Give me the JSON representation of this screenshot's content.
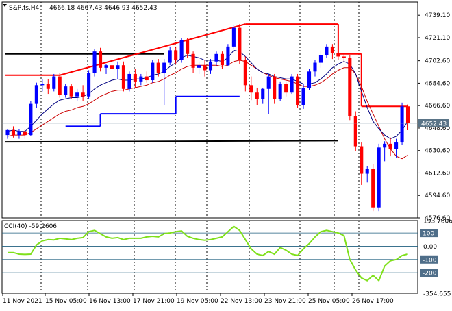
{
  "header": {
    "symbol": "S&P,fs,H4",
    "ohlc": "4666.18 4667.43 4646.93 4652.43"
  },
  "price_axis": {
    "ticks": [
      "4739.10",
      "4721.10",
      "4702.60",
      "4684.60",
      "4666.60",
      "4648.60",
      "4630.60",
      "4612.60",
      "4594.60",
      "4576.60"
    ],
    "current_price": "4652.43"
  },
  "indicator": {
    "title": "CCI(40) -59.2606",
    "ticks": [
      "193.7606",
      "100",
      "0.00",
      "-100",
      "-200",
      "-354.655"
    ],
    "highlighted_ticks": [
      "100",
      "-100",
      "-200"
    ]
  },
  "time_axis": {
    "labels": [
      "11 Nov 2021",
      "15 Nov 05:00",
      "16 Nov 13:00",
      "17 Nov 21:00",
      "19 Nov 05:00",
      "22 Nov 13:00",
      "23 Nov 21:00",
      "25 Nov 05:00",
      "26 Nov 17:00"
    ]
  },
  "colors": {
    "bull": "#0000ff",
    "bear": "#ff0000",
    "ma_fast": "#000080",
    "ma_slow": "#cc0000",
    "cci": "#7fe01a",
    "level_line": "#1f5f7f",
    "grid": "#000000",
    "resistance": "#ff0000",
    "support": "#0000ff",
    "range": "#000000"
  },
  "chart_data": [
    {
      "type": "candlestick",
      "title": "S&P,fs,H4",
      "ylim": [
        4576.6,
        4748.0
      ],
      "grid": true,
      "candles": [
        {
          "o": 4643,
          "h": 4648,
          "l": 4640,
          "c": 4647
        },
        {
          "o": 4647,
          "h": 4650,
          "l": 4641,
          "c": 4643
        },
        {
          "o": 4643,
          "h": 4648,
          "l": 4640,
          "c": 4646
        },
        {
          "o": 4646,
          "h": 4648,
          "l": 4640,
          "c": 4643
        },
        {
          "o": 4643,
          "h": 4670,
          "l": 4642,
          "c": 4668
        },
        {
          "o": 4668,
          "h": 4685,
          "l": 4665,
          "c": 4683
        },
        {
          "o": 4683,
          "h": 4688,
          "l": 4678,
          "c": 4684
        },
        {
          "o": 4684,
          "h": 4688,
          "l": 4676,
          "c": 4680
        },
        {
          "o": 4680,
          "h": 4692,
          "l": 4678,
          "c": 4690
        },
        {
          "o": 4690,
          "h": 4693,
          "l": 4673,
          "c": 4675
        },
        {
          "o": 4675,
          "h": 4684,
          "l": 4673,
          "c": 4682
        },
        {
          "o": 4682,
          "h": 4684,
          "l": 4672,
          "c": 4674
        },
        {
          "o": 4674,
          "h": 4680,
          "l": 4670,
          "c": 4677
        },
        {
          "o": 4677,
          "h": 4683,
          "l": 4670,
          "c": 4674
        },
        {
          "o": 4674,
          "h": 4695,
          "l": 4672,
          "c": 4693
        },
        {
          "o": 4693,
          "h": 4712,
          "l": 4690,
          "c": 4710
        },
        {
          "o": 4710,
          "h": 4713,
          "l": 4694,
          "c": 4697
        },
        {
          "o": 4697,
          "h": 4700,
          "l": 4692,
          "c": 4699
        },
        {
          "o": 4699,
          "h": 4704,
          "l": 4693,
          "c": 4696
        },
        {
          "o": 4696,
          "h": 4702,
          "l": 4688,
          "c": 4699
        },
        {
          "o": 4699,
          "h": 4702,
          "l": 4678,
          "c": 4680
        },
        {
          "o": 4680,
          "h": 4694,
          "l": 4678,
          "c": 4692
        },
        {
          "o": 4692,
          "h": 4696,
          "l": 4681,
          "c": 4686
        },
        {
          "o": 4686,
          "h": 4692,
          "l": 4683,
          "c": 4690
        },
        {
          "o": 4690,
          "h": 4694,
          "l": 4685,
          "c": 4687
        },
        {
          "o": 4687,
          "h": 4703,
          "l": 4685,
          "c": 4701
        },
        {
          "o": 4701,
          "h": 4704,
          "l": 4690,
          "c": 4693
        },
        {
          "o": 4693,
          "h": 4704,
          "l": 4667,
          "c": 4701
        },
        {
          "o": 4701,
          "h": 4714,
          "l": 4699,
          "c": 4711
        },
        {
          "o": 4711,
          "h": 4714,
          "l": 4700,
          "c": 4703
        },
        {
          "o": 4703,
          "h": 4721,
          "l": 4701,
          "c": 4719
        },
        {
          "o": 4719,
          "h": 4721,
          "l": 4705,
          "c": 4708
        },
        {
          "o": 4708,
          "h": 4710,
          "l": 4693,
          "c": 4697
        },
        {
          "o": 4697,
          "h": 4702,
          "l": 4692,
          "c": 4699
        },
        {
          "o": 4699,
          "h": 4703,
          "l": 4690,
          "c": 4695
        },
        {
          "o": 4695,
          "h": 4704,
          "l": 4692,
          "c": 4702
        },
        {
          "o": 4702,
          "h": 4710,
          "l": 4698,
          "c": 4708
        },
        {
          "o": 4708,
          "h": 4710,
          "l": 4696,
          "c": 4699
        },
        {
          "o": 4699,
          "h": 4716,
          "l": 4698,
          "c": 4714
        },
        {
          "o": 4714,
          "h": 4731,
          "l": 4712,
          "c": 4729
        },
        {
          "o": 4729,
          "h": 4732,
          "l": 4700,
          "c": 4703
        },
        {
          "o": 4703,
          "h": 4706,
          "l": 4678,
          "c": 4683
        },
        {
          "o": 4683,
          "h": 4690,
          "l": 4671,
          "c": 4677
        },
        {
          "o": 4677,
          "h": 4681,
          "l": 4667,
          "c": 4672
        },
        {
          "o": 4672,
          "h": 4681,
          "l": 4668,
          "c": 4680
        },
        {
          "o": 4680,
          "h": 4692,
          "l": 4660,
          "c": 4690
        },
        {
          "o": 4690,
          "h": 4692,
          "l": 4668,
          "c": 4672
        },
        {
          "o": 4672,
          "h": 4686,
          "l": 4670,
          "c": 4684
        },
        {
          "o": 4684,
          "h": 4686,
          "l": 4674,
          "c": 4677
        },
        {
          "o": 4677,
          "h": 4692,
          "l": 4676,
          "c": 4690
        },
        {
          "o": 4690,
          "h": 4692,
          "l": 4665,
          "c": 4667
        },
        {
          "o": 4667,
          "h": 4684,
          "l": 4664,
          "c": 4681
        },
        {
          "o": 4681,
          "h": 4696,
          "l": 4679,
          "c": 4694
        },
        {
          "o": 4694,
          "h": 4703,
          "l": 4690,
          "c": 4701
        },
        {
          "o": 4701,
          "h": 4710,
          "l": 4697,
          "c": 4707
        },
        {
          "o": 4707,
          "h": 4716,
          "l": 4705,
          "c": 4714
        },
        {
          "o": 4714,
          "h": 4716,
          "l": 4704,
          "c": 4709
        },
        {
          "o": 4709,
          "h": 4712,
          "l": 4703,
          "c": 4706
        },
        {
          "o": 4706,
          "h": 4709,
          "l": 4702,
          "c": 4705
        },
        {
          "o": 4705,
          "h": 4707,
          "l": 4655,
          "c": 4658
        },
        {
          "o": 4658,
          "h": 4662,
          "l": 4630,
          "c": 4634
        },
        {
          "o": 4634,
          "h": 4637,
          "l": 4603,
          "c": 4612
        },
        {
          "o": 4612,
          "h": 4618,
          "l": 4605,
          "c": 4616
        },
        {
          "o": 4616,
          "h": 4620,
          "l": 4582,
          "c": 4585
        },
        {
          "o": 4585,
          "h": 4636,
          "l": 4582,
          "c": 4633
        },
        {
          "o": 4633,
          "h": 4638,
          "l": 4622,
          "c": 4636
        },
        {
          "o": 4636,
          "h": 4641,
          "l": 4626,
          "c": 4632
        },
        {
          "o": 4632,
          "h": 4640,
          "l": 4625,
          "c": 4637
        },
        {
          "o": 4637,
          "h": 4669,
          "l": 4635,
          "c": 4666
        },
        {
          "o": 4666,
          "h": 4667.43,
          "l": 4646.93,
          "c": 4652.43
        }
      ],
      "ma_fast": [
        4646,
        4647,
        4646,
        4646,
        4650,
        4655,
        4660,
        4664,
        4668,
        4671,
        4672,
        4673,
        4673,
        4674,
        4676,
        4680,
        4683,
        4685,
        4687,
        4688,
        4687,
        4687,
        4688,
        4688,
        4689,
        4691,
        4692,
        4694,
        4698,
        4701,
        4705,
        4707,
        4706,
        4705,
        4703,
        4703,
        4703,
        4702,
        4705,
        4711,
        4710,
        4706,
        4701,
        4696,
        4693,
        4692,
        4690,
        4689,
        4688,
        4688,
        4686,
        4684,
        4684,
        4685,
        4688,
        4692,
        4697,
        4700,
        4702,
        4700,
        4692,
        4678,
        4665,
        4654,
        4648,
        4643,
        4640,
        4642,
        4647,
        4654
      ],
      "ma_slow": [
        4642,
        4643,
        4643,
        4643,
        4645,
        4648,
        4651,
        4654,
        4657,
        4660,
        4662,
        4663,
        4665,
        4666,
        4668,
        4671,
        4674,
        4676,
        4678,
        4679,
        4679,
        4680,
        4681,
        4682,
        4683,
        4685,
        4686,
        4688,
        4691,
        4693,
        4696,
        4698,
        4699,
        4699,
        4699,
        4699,
        4699,
        4698,
        4699,
        4702,
        4703,
        4702,
        4699,
        4696,
        4693,
        4691,
        4689,
        4688,
        4687,
        4686,
        4684,
        4682,
        4682,
        4683,
        4685,
        4688,
        4692,
        4695,
        4697,
        4697,
        4692,
        4682,
        4670,
        4660,
        4650,
        4640,
        4632,
        4626,
        4624,
        4627
      ],
      "resistance_segments": [
        {
          "x": [
            0,
            9
          ],
          "y": [
            4691,
            4691
          ]
        },
        {
          "x": [
            41,
            57
          ],
          "y": [
            4732,
            4732
          ]
        },
        {
          "x": [
            57,
            61
          ],
          "y": [
            4708,
            4708
          ]
        },
        {
          "x": [
            61,
            69
          ],
          "y": [
            4666,
            4666
          ]
        }
      ],
      "support_segments": [
        {
          "x": [
            10,
            16
          ],
          "y": [
            4650,
            4650
          ]
        },
        {
          "x": [
            16,
            29
          ],
          "y": [
            4660,
            4660
          ]
        },
        {
          "x": [
            29,
            40
          ],
          "y": [
            4674,
            4674
          ]
        }
      ],
      "range_lines": [
        {
          "x": [
            0,
            27
          ],
          "y": [
            4708,
            4708
          ]
        },
        {
          "x": [
            0,
            57
          ],
          "y": [
            4637.5,
            4638.5
          ]
        }
      ]
    },
    {
      "type": "line",
      "title": "CCI(40) -59.2606",
      "ylim": [
        -354.655,
        193.7606
      ],
      "levels": [
        100,
        0,
        -100,
        -200
      ],
      "values": [
        -48,
        -48,
        -60,
        -62,
        -60,
        10,
        40,
        50,
        48,
        60,
        55,
        50,
        60,
        65,
        110,
        120,
        95,
        70,
        60,
        65,
        50,
        60,
        60,
        60,
        70,
        75,
        70,
        95,
        100,
        110,
        115,
        75,
        60,
        50,
        45,
        50,
        60,
        70,
        110,
        150,
        120,
        50,
        -20,
        -60,
        -70,
        -40,
        -60,
        -10,
        -30,
        -60,
        -70,
        -20,
        20,
        70,
        110,
        120,
        110,
        100,
        80,
        -100,
        -180,
        -240,
        -260,
        -220,
        -260,
        -150,
        -110,
        -100,
        -70,
        -59.26
      ]
    }
  ]
}
